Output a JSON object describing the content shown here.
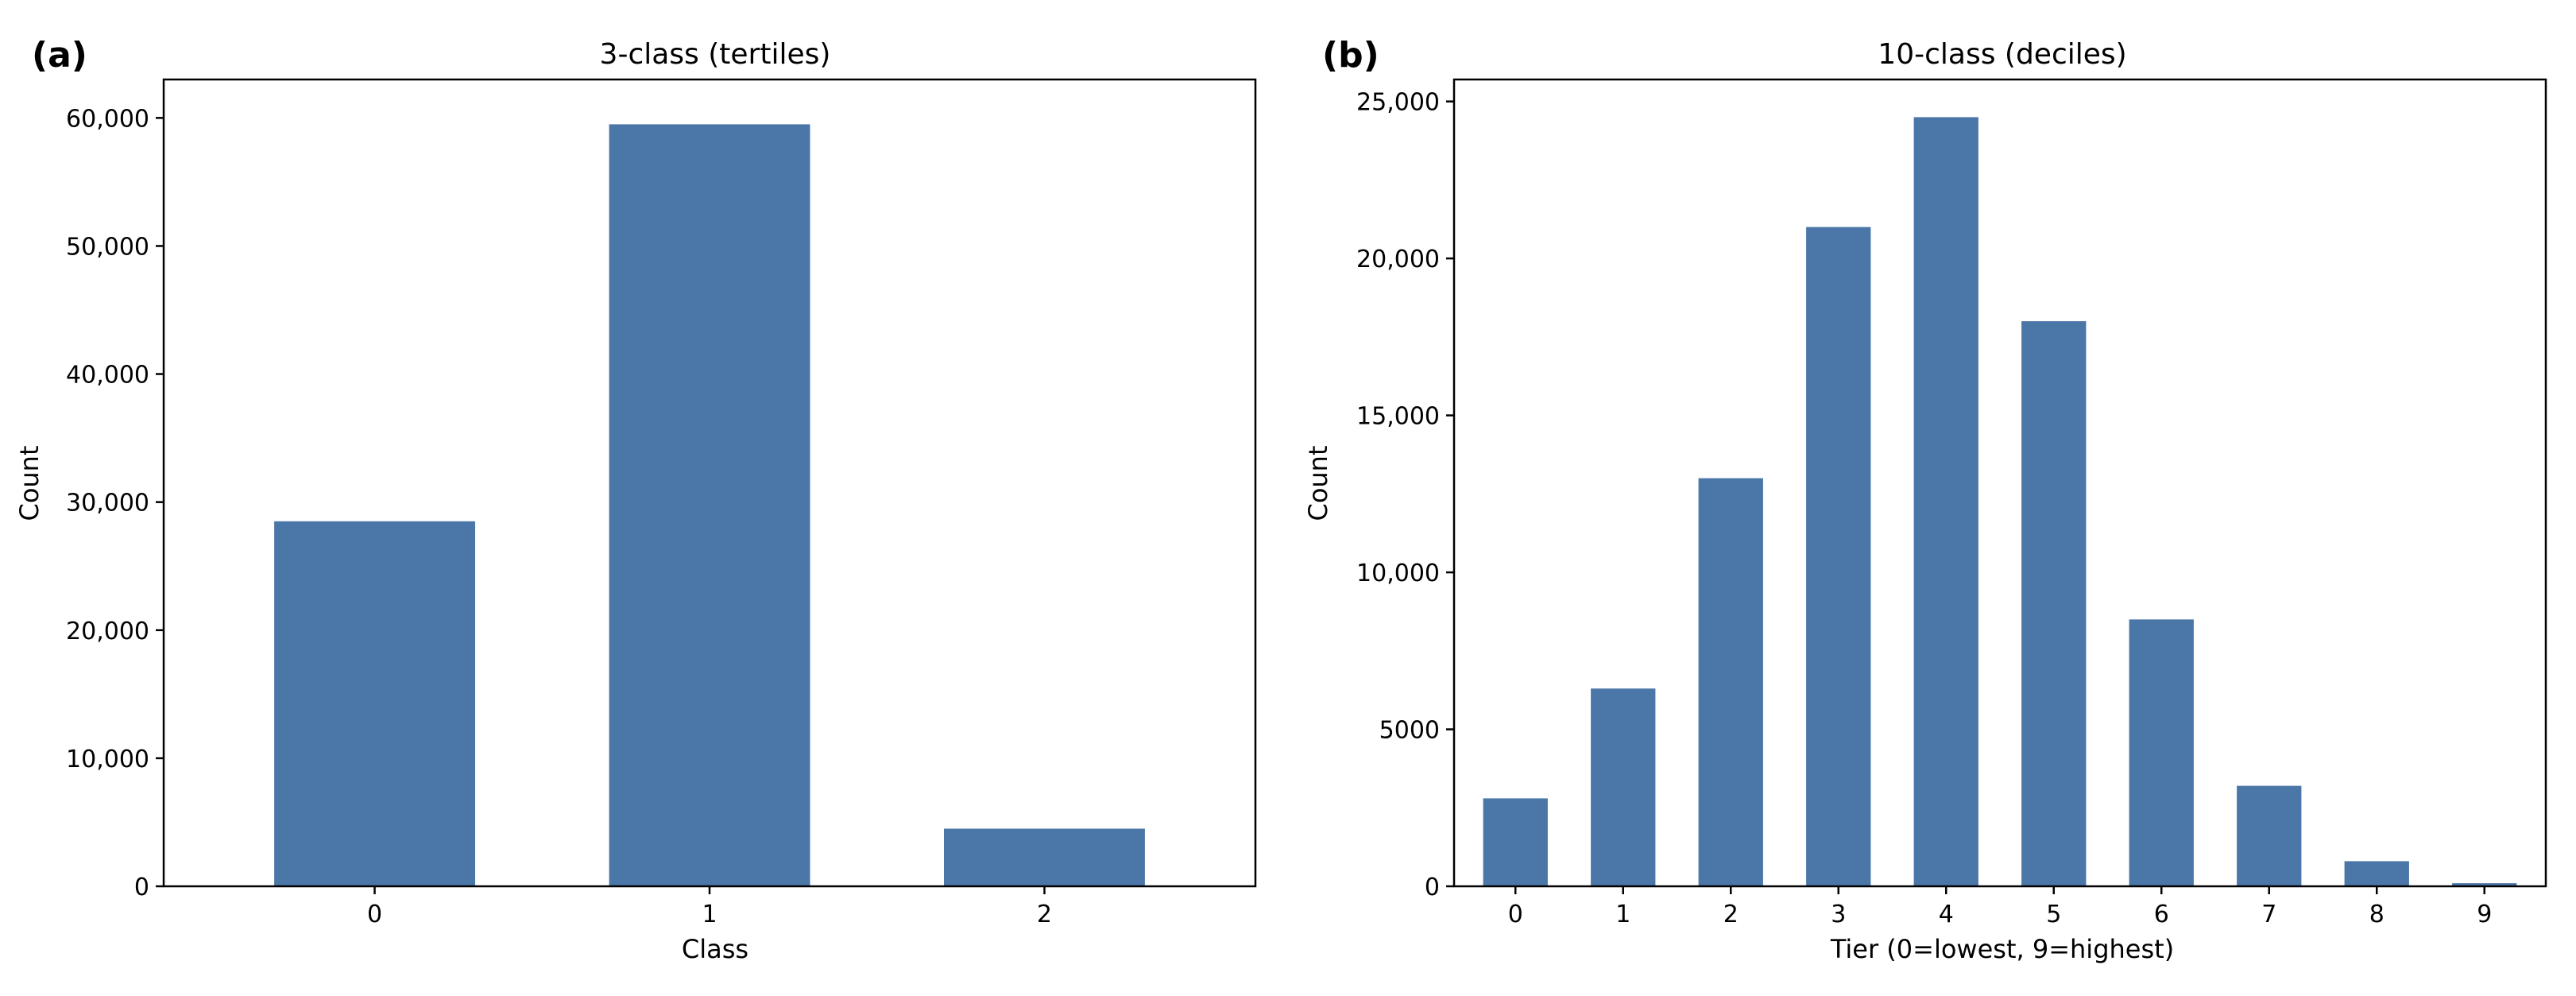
{
  "figure": {
    "bar_color": "#4a76a8",
    "panels": [
      {
        "panel_label": "(a)",
        "title": "3-class (tertiles)",
        "xlabel": "Class",
        "ylabel": "Count"
      },
      {
        "panel_label": "(b)",
        "title": "10-class (deciles)",
        "xlabel": "Tier (0=lowest, 9=highest)",
        "ylabel": "Count"
      }
    ]
  },
  "chart_data": [
    {
      "type": "bar",
      "title": "3-class (tertiles)",
      "xlabel": "Class",
      "ylabel": "Count",
      "categories": [
        "0",
        "1",
        "2"
      ],
      "values": [
        28500,
        59500,
        4500
      ],
      "ylim": [
        0,
        63000
      ],
      "yticks": [
        0,
        10000,
        20000,
        30000,
        40000,
        50000,
        60000
      ],
      "ytick_labels": [
        "0",
        "10,000",
        "20,000",
        "30,000",
        "40,000",
        "50,000",
        "60,000"
      ],
      "grid": false,
      "legend": "none"
    },
    {
      "type": "bar",
      "title": "10-class (deciles)",
      "xlabel": "Tier (0=lowest, 9=highest)",
      "ylabel": "Count",
      "categories": [
        "0",
        "1",
        "2",
        "3",
        "4",
        "5",
        "6",
        "7",
        "8",
        "9"
      ],
      "values": [
        2800,
        6300,
        13000,
        21000,
        24500,
        18000,
        8500,
        3200,
        800,
        100
      ],
      "ylim": [
        0,
        25700
      ],
      "yticks": [
        0,
        5000,
        10000,
        15000,
        20000,
        25000
      ],
      "ytick_labels": [
        "0",
        "5000",
        "10,000",
        "15,000",
        "20,000",
        "25,000"
      ],
      "grid": false,
      "legend": "none"
    }
  ]
}
